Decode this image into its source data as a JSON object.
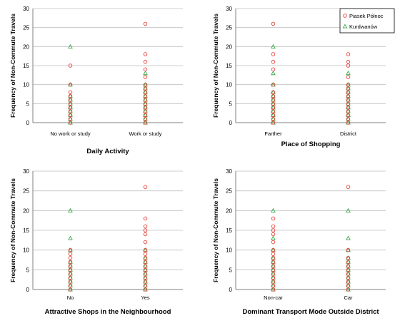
{
  "legend": {
    "items": [
      {
        "label": "Piasek Północ",
        "marker": "circle",
        "color": "#e8423a"
      },
      {
        "label": "Kurdwanów",
        "marker": "triangle",
        "color": "#3aaa4a"
      }
    ]
  },
  "chart_data": [
    {
      "type": "scatter",
      "title": "Daily Activity",
      "xlabel": "Daily Activity",
      "ylabel": "Frequency of Non-Commute Travels",
      "categories": [
        "No work or study",
        "Work or study"
      ],
      "ylim": [
        0,
        30
      ],
      "yticks": [
        0,
        5,
        10,
        15,
        20,
        25,
        30
      ],
      "grid": true,
      "series": [
        {
          "name": "Piasek Północ",
          "points": [
            {
              "cat": 0,
              "values": [
                0,
                1,
                2,
                3,
                4,
                5,
                6,
                7,
                8,
                10,
                15
              ]
            },
            {
              "cat": 1,
              "values": [
                0,
                1,
                2,
                3,
                4,
                5,
                6,
                7,
                8,
                9,
                10,
                12,
                14,
                16,
                18,
                26
              ]
            }
          ]
        },
        {
          "name": "Kurdwanów",
          "points": [
            {
              "cat": 0,
              "values": [
                0,
                1,
                2,
                3,
                4,
                5,
                6,
                7,
                10,
                20
              ]
            },
            {
              "cat": 1,
              "values": [
                0,
                1,
                2,
                3,
                4,
                5,
                6,
                7,
                8,
                9,
                10,
                13
              ]
            }
          ]
        }
      ]
    },
    {
      "type": "scatter",
      "title": "Place of Shopping",
      "xlabel": "Place of Shopping",
      "ylabel": "Frequency of Non-Commute Travels",
      "categories": [
        "Farther",
        "District"
      ],
      "ylim": [
        0,
        30
      ],
      "yticks": [
        0,
        5,
        10,
        15,
        20,
        25,
        30
      ],
      "grid": true,
      "legend_position": "top-right",
      "series": [
        {
          "name": "Piasek Północ",
          "points": [
            {
              "cat": 0,
              "values": [
                0,
                1,
                2,
                3,
                4,
                5,
                6,
                7,
                8,
                10,
                14,
                16,
                18,
                26
              ]
            },
            {
              "cat": 1,
              "values": [
                0,
                1,
                2,
                3,
                4,
                5,
                6,
                7,
                8,
                9,
                10,
                12,
                15,
                16,
                18
              ]
            }
          ]
        },
        {
          "name": "Kurdwanów",
          "points": [
            {
              "cat": 0,
              "values": [
                0,
                1,
                2,
                3,
                4,
                5,
                6,
                7,
                8,
                10,
                13,
                20
              ]
            },
            {
              "cat": 1,
              "values": [
                0,
                1,
                2,
                3,
                4,
                5,
                6,
                7,
                8,
                9,
                10,
                13
              ]
            }
          ]
        }
      ]
    },
    {
      "type": "scatter",
      "title": "Attractive Shops in the Neighbourhood",
      "xlabel": "Attractive Shops in the Neighbourhood",
      "ylabel": "Frequency of Non-Commute Travels",
      "categories": [
        "No",
        "Yes"
      ],
      "ylim": [
        0,
        30
      ],
      "yticks": [
        0,
        5,
        10,
        15,
        20,
        25,
        30
      ],
      "grid": true,
      "series": [
        {
          "name": "Piasek Północ",
          "points": [
            {
              "cat": 0,
              "values": [
                0,
                1,
                2,
                3,
                4,
                5,
                6,
                7,
                8,
                9,
                10
              ]
            },
            {
              "cat": 1,
              "values": [
                0,
                1,
                2,
                3,
                4,
                5,
                6,
                7,
                8,
                9,
                10,
                12,
                14,
                15,
                16,
                18,
                26
              ]
            }
          ]
        },
        {
          "name": "Kurdwanów",
          "points": [
            {
              "cat": 0,
              "values": [
                0,
                1,
                2,
                3,
                4,
                5,
                6,
                7,
                10,
                13,
                20
              ]
            },
            {
              "cat": 1,
              "values": [
                0,
                1,
                2,
                3,
                4,
                5,
                6,
                7,
                8,
                10
              ]
            }
          ]
        }
      ]
    },
    {
      "type": "scatter",
      "title": "Dominant Transport Mode Outside District",
      "xlabel": "Dominant Transport Mode Outside District",
      "ylabel": "Frequency of Non-Commute Travels",
      "categories": [
        "Non-car",
        "Car"
      ],
      "ylim": [
        0,
        30
      ],
      "yticks": [
        0,
        5,
        10,
        15,
        20,
        25,
        30
      ],
      "grid": true,
      "series": [
        {
          "name": "Piasek Północ",
          "points": [
            {
              "cat": 0,
              "values": [
                0,
                1,
                2,
                3,
                4,
                5,
                6,
                7,
                8,
                9,
                10,
                12,
                14,
                15,
                16,
                18
              ]
            },
            {
              "cat": 1,
              "values": [
                0,
                1,
                2,
                3,
                4,
                5,
                6,
                7,
                8,
                10,
                26
              ]
            }
          ]
        },
        {
          "name": "Kurdwanów",
          "points": [
            {
              "cat": 0,
              "values": [
                0,
                1,
                2,
                3,
                4,
                5,
                6,
                7,
                8,
                10,
                13,
                20
              ]
            },
            {
              "cat": 1,
              "values": [
                0,
                1,
                2,
                3,
                4,
                5,
                6,
                7,
                8,
                10,
                13,
                20
              ]
            }
          ]
        }
      ]
    }
  ]
}
